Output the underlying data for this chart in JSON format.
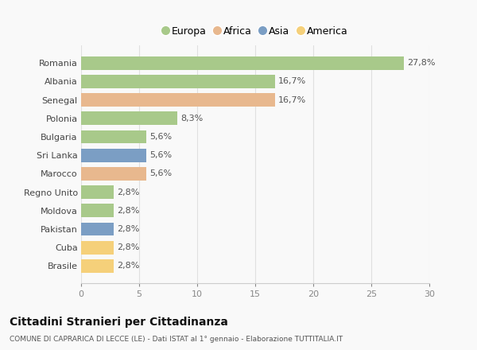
{
  "countries": [
    "Romania",
    "Albania",
    "Senegal",
    "Polonia",
    "Bulgaria",
    "Sri Lanka",
    "Marocco",
    "Regno Unito",
    "Moldova",
    "Pakistan",
    "Cuba",
    "Brasile"
  ],
  "values": [
    27.8,
    16.7,
    16.7,
    8.3,
    5.6,
    5.6,
    5.6,
    2.8,
    2.8,
    2.8,
    2.8,
    2.8
  ],
  "labels": [
    "27,8%",
    "16,7%",
    "16,7%",
    "8,3%",
    "5,6%",
    "5,6%",
    "5,6%",
    "2,8%",
    "2,8%",
    "2,8%",
    "2,8%",
    "2,8%"
  ],
  "continents": [
    "Europa",
    "Europa",
    "Africa",
    "Europa",
    "Europa",
    "Asia",
    "Africa",
    "Europa",
    "Europa",
    "Asia",
    "America",
    "America"
  ],
  "colors": {
    "Europa": "#a8c98a",
    "Africa": "#e8b88e",
    "Asia": "#7b9ec4",
    "America": "#f5d07a"
  },
  "legend_order": [
    "Europa",
    "Africa",
    "Asia",
    "America"
  ],
  "xlim": [
    0,
    30
  ],
  "xticks": [
    0,
    5,
    10,
    15,
    20,
    25,
    30
  ],
  "title": "Cittadini Stranieri per Cittadinanza",
  "subtitle": "COMUNE DI CAPRARICA DI LECCE (LE) - Dati ISTAT al 1° gennaio - Elaborazione TUTTITALIA.IT",
  "background_color": "#f9f9f9",
  "bar_height": 0.72,
  "grid_color": "#e0e0e0",
  "label_fontsize": 8,
  "ytick_fontsize": 8,
  "xtick_fontsize": 8
}
